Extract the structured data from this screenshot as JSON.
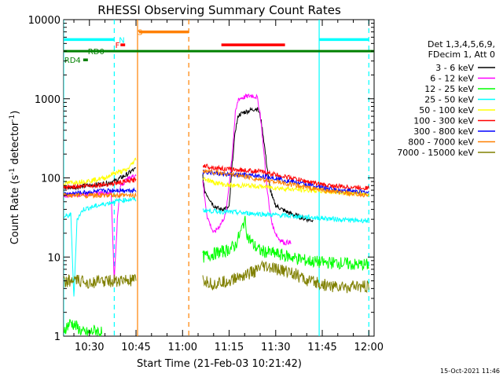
{
  "chart_data": {
    "type": "line",
    "title": "RHESSI Observing Summary Count Rates",
    "xlabel": "Start Time (21-Feb-03 10:21:42)",
    "ylabel_main": "Count Rate (s",
    "ylabel_sup1": "-1",
    "ylabel_mid": " detector",
    "ylabel_sup2": "-1",
    "ylabel_end": ")",
    "x_unit": "minutes since 10:00 UT",
    "xlim": [
      21.7,
      121.7
    ],
    "ylim": [
      1,
      10000
    ],
    "yscale": "log",
    "x_ticks": [
      {
        "value": 30,
        "label": "10:30"
      },
      {
        "value": 45,
        "label": "10:45"
      },
      {
        "value": 60,
        "label": "11:00"
      },
      {
        "value": 75,
        "label": "11:15"
      },
      {
        "value": 90,
        "label": "11:30"
      },
      {
        "value": 105,
        "label": "11:45"
      },
      {
        "value": 120,
        "label": "12:00"
      }
    ],
    "y_ticks": [
      {
        "value": 1,
        "label": "1"
      },
      {
        "value": 10,
        "label": "10"
      },
      {
        "value": 100,
        "label": "100"
      },
      {
        "value": 1000,
        "label": "1000"
      },
      {
        "value": 10000,
        "label": "10000"
      }
    ],
    "legend_header": [
      "Det 1,3,4,5,6,9,",
      "FDecim 1, Att 0"
    ],
    "data_gap": [
      45.5,
      66.5
    ],
    "series": [
      {
        "name": "3 - 6 keV",
        "color": "#000000",
        "points": [
          [
            21.7,
            75
          ],
          [
            26,
            77
          ],
          [
            30,
            80
          ],
          [
            34,
            84
          ],
          [
            38,
            90
          ],
          [
            40,
            100
          ],
          [
            42,
            110
          ],
          [
            44,
            125
          ],
          [
            45,
            130
          ],
          [
            66.5,
            110
          ],
          [
            67,
            70
          ],
          [
            70,
            45
          ],
          [
            72,
            40
          ],
          [
            75,
            42
          ],
          [
            76,
            150
          ],
          [
            77,
            400
          ],
          [
            78,
            620
          ],
          [
            80,
            680
          ],
          [
            82,
            720
          ],
          [
            84,
            760
          ],
          [
            85,
            620
          ],
          [
            86,
            340
          ],
          [
            87,
            160
          ],
          [
            88,
            80
          ],
          [
            89,
            55
          ],
          [
            90,
            45
          ],
          [
            92,
            40
          ],
          [
            95,
            35
          ],
          [
            98,
            32
          ],
          [
            100,
            30
          ],
          [
            102,
            29
          ]
        ]
      },
      {
        "name": "6 - 12 keV",
        "color": "#ff00ff",
        "points": [
          [
            21.7,
            60
          ],
          [
            26,
            62
          ],
          [
            30,
            63
          ],
          [
            34,
            64
          ],
          [
            37,
            66
          ],
          [
            38,
            5
          ],
          [
            39,
            30
          ],
          [
            40,
            80
          ],
          [
            42,
            95
          ],
          [
            44,
            105
          ],
          [
            45,
            110
          ],
          [
            66.5,
            95
          ],
          [
            67,
            60
          ],
          [
            68,
            32
          ],
          [
            70,
            20
          ],
          [
            72,
            25
          ],
          [
            74,
            35
          ],
          [
            76,
            200
          ],
          [
            77,
            650
          ],
          [
            78,
            1000
          ],
          [
            80,
            1050
          ],
          [
            82,
            1100
          ],
          [
            84,
            1050
          ],
          [
            85,
            650
          ],
          [
            86,
            260
          ],
          [
            87,
            90
          ],
          [
            88,
            40
          ],
          [
            89,
            25
          ],
          [
            90,
            20
          ],
          [
            91,
            17
          ],
          [
            92,
            16
          ],
          [
            93,
            15
          ],
          [
            94,
            15.5
          ],
          [
            95,
            15
          ]
        ]
      },
      {
        "name": "12 - 25 keV",
        "color": "#00ff00",
        "points": [
          [
            21.7,
            1.2
          ],
          [
            24,
            1.5
          ],
          [
            26,
            1.3
          ],
          [
            28,
            1.1
          ],
          [
            30,
            1.1
          ],
          [
            32,
            1.2
          ],
          [
            34,
            1.1
          ],
          [
            66.5,
            10
          ],
          [
            70,
            11
          ],
          [
            74,
            12
          ],
          [
            77,
            14
          ],
          [
            79,
            22
          ],
          [
            80,
            30
          ],
          [
            81,
            18
          ],
          [
            83,
            14
          ],
          [
            85,
            12
          ],
          [
            90,
            11
          ],
          [
            95,
            10
          ],
          [
            100,
            9
          ],
          [
            105,
            8.5
          ],
          [
            110,
            8.5
          ],
          [
            115,
            8
          ],
          [
            120,
            8
          ]
        ]
      },
      {
        "name": "25 - 50 keV",
        "color": "#00ffff",
        "points": [
          [
            21.7,
            32
          ],
          [
            24,
            34
          ],
          [
            25,
            3
          ],
          [
            26,
            30
          ],
          [
            28,
            40
          ],
          [
            30,
            42
          ],
          [
            33,
            45
          ],
          [
            36,
            48
          ],
          [
            38,
            50
          ],
          [
            40,
            52
          ],
          [
            42,
            53
          ],
          [
            45,
            54
          ],
          [
            66.5,
            39
          ],
          [
            70,
            38
          ],
          [
            75,
            37
          ],
          [
            80,
            36
          ],
          [
            85,
            35
          ],
          [
            90,
            34
          ],
          [
            95,
            33
          ],
          [
            100,
            32
          ],
          [
            105,
            31
          ],
          [
            110,
            30
          ],
          [
            115,
            29
          ],
          [
            120,
            29
          ]
        ]
      },
      {
        "name": "50 - 100 keV",
        "color": "#ffff00",
        "points": [
          [
            21.7,
            85
          ],
          [
            25,
            88
          ],
          [
            30,
            92
          ],
          [
            35,
            100
          ],
          [
            38,
            115
          ],
          [
            40,
            120
          ],
          [
            42,
            125
          ],
          [
            44,
            155
          ],
          [
            45,
            175
          ],
          [
            66.5,
            100
          ],
          [
            70,
            88
          ],
          [
            75,
            80
          ],
          [
            80,
            80
          ],
          [
            85,
            78
          ],
          [
            90,
            75
          ],
          [
            95,
            72
          ],
          [
            100,
            70
          ],
          [
            105,
            68
          ],
          [
            110,
            66
          ],
          [
            115,
            64
          ],
          [
            120,
            62
          ]
        ]
      },
      {
        "name": "100 - 300 keV",
        "color": "#ff0000",
        "points": [
          [
            21.7,
            75
          ],
          [
            25,
            78
          ],
          [
            30,
            80
          ],
          [
            34,
            82
          ],
          [
            38,
            85
          ],
          [
            42,
            90
          ],
          [
            45,
            95
          ],
          [
            66.5,
            145
          ],
          [
            70,
            135
          ],
          [
            75,
            128
          ],
          [
            80,
            125
          ],
          [
            85,
            120
          ],
          [
            90,
            110
          ],
          [
            95,
            100
          ],
          [
            100,
            90
          ],
          [
            105,
            82
          ],
          [
            110,
            78
          ],
          [
            115,
            76
          ],
          [
            120,
            75
          ]
        ]
      },
      {
        "name": "300 - 800 keV",
        "color": "#0000ff",
        "points": [
          [
            21.7,
            62
          ],
          [
            26,
            64
          ],
          [
            30,
            66
          ],
          [
            34,
            68
          ],
          [
            38,
            70
          ],
          [
            42,
            70
          ],
          [
            45,
            70
          ],
          [
            66.5,
            120
          ],
          [
            70,
            115
          ],
          [
            75,
            110
          ],
          [
            80,
            108
          ],
          [
            85,
            105
          ],
          [
            90,
            100
          ],
          [
            95,
            90
          ],
          [
            100,
            82
          ],
          [
            105,
            75
          ],
          [
            110,
            70
          ],
          [
            115,
            68
          ],
          [
            120,
            65
          ]
        ]
      },
      {
        "name": "800 - 7000 keV",
        "color": "#ff8000",
        "points": [
          [
            21.7,
            60
          ],
          [
            25,
            60
          ],
          [
            30,
            60
          ],
          [
            35,
            60
          ],
          [
            40,
            60
          ],
          [
            45,
            60
          ],
          [
            66.5,
            125
          ],
          [
            70,
            118
          ],
          [
            75,
            112
          ],
          [
            80,
            105
          ],
          [
            85,
            95
          ],
          [
            90,
            90
          ],
          [
            95,
            82
          ],
          [
            100,
            76
          ],
          [
            105,
            70
          ],
          [
            110,
            66
          ],
          [
            115,
            62
          ],
          [
            120,
            60
          ]
        ]
      },
      {
        "name": "7000 - 15000 keV",
        "color": "#808000",
        "points": [
          [
            21.7,
            5
          ],
          [
            25,
            5
          ],
          [
            30,
            4.8
          ],
          [
            35,
            5
          ],
          [
            40,
            5
          ],
          [
            45,
            5
          ],
          [
            66.5,
            5
          ],
          [
            70,
            4.5
          ],
          [
            75,
            5
          ],
          [
            80,
            6
          ],
          [
            83,
            6.5
          ],
          [
            86,
            7.5
          ],
          [
            90,
            7
          ],
          [
            95,
            6.5
          ],
          [
            100,
            5
          ],
          [
            105,
            4.5
          ],
          [
            110,
            4.2
          ],
          [
            115,
            4.2
          ],
          [
            120,
            4.2
          ]
        ]
      }
    ],
    "flags": [
      {
        "label": "S",
        "color": "#ff8000",
        "x_start": 46,
        "x_end": 62,
        "level": 7000,
        "label_at": 45.5
      },
      {
        "label": "N",
        "color": "#00ffff",
        "x_start": 21.7,
        "x_end": 38,
        "level": 5600,
        "label_at": 39.5
      },
      {
        "label": "N",
        "color": "#00ffff",
        "x_start": 104,
        "x_end": 120,
        "level": 5600,
        "label_at": null
      },
      {
        "label": "F",
        "color": "#ff0000",
        "x_start": 40,
        "x_end": 41.5,
        "level": 4800,
        "label_at": 38.3
      },
      {
        "label": "",
        "color": "#ff0000",
        "x_start": 72.5,
        "x_end": 93,
        "level": 4800,
        "label_at": null
      },
      {
        "label": "RD0",
        "color": "#008000",
        "x_start": 21.7,
        "x_end": 121.7,
        "level": 4000,
        "label_at": 29.5
      },
      {
        "label": "RD4",
        "color": "#008000",
        "x_start": 28,
        "x_end": 29.5,
        "level": 3100,
        "label_at": 21.9
      }
    ],
    "vlines": [
      {
        "x": 21.7,
        "color": "#00ffff",
        "style": "solid"
      },
      {
        "x": 38,
        "color": "#00ffff",
        "style": "dashed"
      },
      {
        "x": 45.5,
        "color": "#ff8000",
        "style": "solid"
      },
      {
        "x": 62,
        "color": "#ff8000",
        "style": "dashed"
      },
      {
        "x": 104,
        "color": "#00ffff",
        "style": "solid"
      },
      {
        "x": 120,
        "color": "#00ffff",
        "style": "dashed"
      }
    ],
    "timestamp": "15-Oct-2021 11:46"
  }
}
